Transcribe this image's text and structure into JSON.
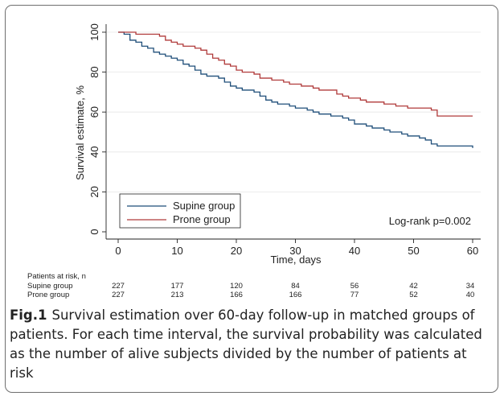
{
  "chart_data": {
    "type": "line",
    "xlabel": "Time, days",
    "ylabel": "Survival estimate, %",
    "xlim": [
      0,
      60
    ],
    "ylim": [
      0,
      100
    ],
    "x_ticks": [
      0,
      10,
      20,
      30,
      40,
      50,
      60
    ],
    "y_ticks": [
      0,
      20,
      40,
      60,
      80,
      100
    ],
    "grid": "horizontal",
    "legend_position": "bottom-left",
    "annotation": "Log-rank p=0.002",
    "series": [
      {
        "name": "Supine group",
        "color": "#1f4e79",
        "step_points": [
          [
            0,
            100
          ],
          [
            1,
            99
          ],
          [
            2,
            96
          ],
          [
            3,
            95
          ],
          [
            4,
            93
          ],
          [
            5,
            92
          ],
          [
            6,
            90
          ],
          [
            7,
            89
          ],
          [
            8,
            88
          ],
          [
            9,
            87
          ],
          [
            10,
            86
          ],
          [
            11,
            84
          ],
          [
            12,
            83
          ],
          [
            13,
            81
          ],
          [
            14,
            79
          ],
          [
            15,
            78
          ],
          [
            17,
            77
          ],
          [
            18,
            75
          ],
          [
            19,
            73
          ],
          [
            20,
            72
          ],
          [
            21,
            71
          ],
          [
            23,
            70
          ],
          [
            24,
            68
          ],
          [
            25,
            66
          ],
          [
            26,
            65
          ],
          [
            27,
            64
          ],
          [
            29,
            63
          ],
          [
            30,
            62
          ],
          [
            32,
            61
          ],
          [
            33,
            60
          ],
          [
            34,
            59
          ],
          [
            36,
            58
          ],
          [
            38,
            57
          ],
          [
            39,
            56
          ],
          [
            40,
            54
          ],
          [
            42,
            53
          ],
          [
            43,
            52
          ],
          [
            45,
            51
          ],
          [
            46,
            50
          ],
          [
            48,
            49
          ],
          [
            49,
            48
          ],
          [
            51,
            47
          ],
          [
            52,
            46
          ],
          [
            53,
            44
          ],
          [
            54,
            43
          ],
          [
            59,
            43
          ],
          [
            60,
            42
          ]
        ]
      },
      {
        "name": "Prone group",
        "color": "#b03a3a",
        "step_points": [
          [
            0,
            100
          ],
          [
            2,
            100
          ],
          [
            3,
            99
          ],
          [
            4,
            99
          ],
          [
            7,
            98
          ],
          [
            8,
            96
          ],
          [
            9,
            95
          ],
          [
            10,
            94
          ],
          [
            11,
            93
          ],
          [
            13,
            92
          ],
          [
            14,
            91
          ],
          [
            15,
            89
          ],
          [
            16,
            87
          ],
          [
            17,
            86
          ],
          [
            18,
            84
          ],
          [
            19,
            83
          ],
          [
            20,
            81
          ],
          [
            21,
            80
          ],
          [
            23,
            79
          ],
          [
            24,
            77
          ],
          [
            26,
            76
          ],
          [
            28,
            75
          ],
          [
            29,
            74
          ],
          [
            31,
            73
          ],
          [
            33,
            72
          ],
          [
            34,
            71
          ],
          [
            37,
            69
          ],
          [
            38,
            68
          ],
          [
            39,
            67
          ],
          [
            41,
            66
          ],
          [
            42,
            65
          ],
          [
            45,
            64
          ],
          [
            47,
            63
          ],
          [
            49,
            62
          ],
          [
            53,
            61
          ],
          [
            54,
            58
          ],
          [
            60,
            58
          ]
        ]
      }
    ],
    "risk_table": {
      "header": "Patients at risk, n",
      "times": [
        0,
        10,
        20,
        30,
        40,
        50,
        60
      ],
      "rows": [
        {
          "label": "Supine group",
          "values": [
            "227",
            "177",
            "120",
            "84",
            "56",
            "42",
            "34"
          ]
        },
        {
          "label": "Prone group",
          "values": [
            "227",
            "213",
            "166",
            "166",
            "77",
            "52",
            "40"
          ]
        }
      ]
    }
  },
  "caption": {
    "label": "Fig.1",
    "text": "Survival estimation over 60-day follow-up in matched groups of patients. For each time interval, the survival probability was calculated as the number of alive subjects divided by the number of patients at risk"
  }
}
